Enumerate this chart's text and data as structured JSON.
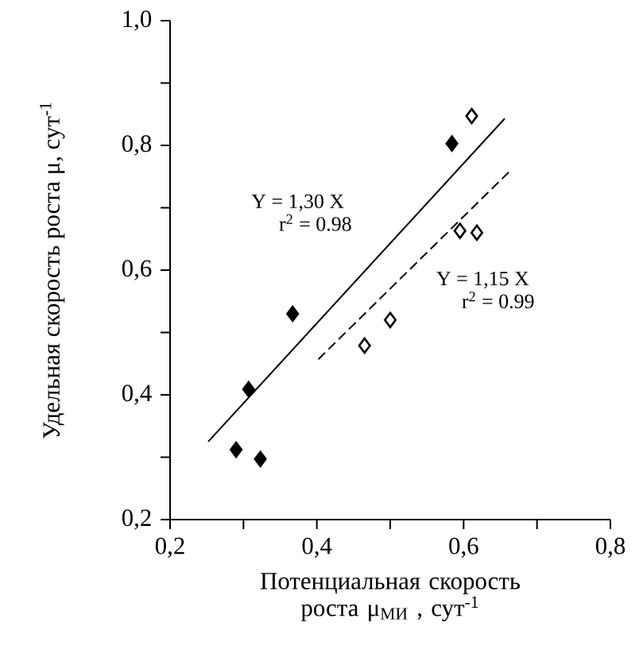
{
  "chart_data": {
    "type": "scatter",
    "xlabel": "Потенциальная скорость роста μ$_{МИ}$ , сут$^{-1}$",
    "ylabel": "Удельная скорость роста μ, сут$^{-1}$",
    "xlim": [
      0.2,
      0.8
    ],
    "ylim": [
      0.2,
      1.0
    ],
    "xticks": [
      {
        "value": 0.2,
        "label": "0,2"
      },
      {
        "value": 0.3,
        "label": null
      },
      {
        "value": 0.4,
        "label": "0,4"
      },
      {
        "value": 0.5,
        "label": null
      },
      {
        "value": 0.6,
        "label": "0,6"
      },
      {
        "value": 0.7,
        "label": null
      },
      {
        "value": 0.8,
        "label": "0,8"
      }
    ],
    "yticks": [
      {
        "value": 0.2,
        "label": "0,2"
      },
      {
        "value": 0.3,
        "label": null
      },
      {
        "value": 0.4,
        "label": "0,4"
      },
      {
        "value": 0.5,
        "label": null
      },
      {
        "value": 0.6,
        "label": "0,6"
      },
      {
        "value": 0.7,
        "label": null
      },
      {
        "value": 0.8,
        "label": "0,8"
      },
      {
        "value": 0.9,
        "label": null
      },
      {
        "value": 1.0,
        "label": "1,0"
      }
    ],
    "marker": "diamond",
    "grid": false,
    "series": [
      {
        "type": "scatter",
        "color": "#000000",
        "x": [
          0.29,
          0.323,
          0.307,
          0.367,
          0.584
        ],
        "values": [
          0.312,
          0.297,
          0.409,
          0.53,
          0.803
        ]
      },
      {
        "type": "scatter",
        "color": "#ffffff",
        "x": [
          0.611,
          0.595,
          0.618,
          0.465,
          0.5
        ],
        "values": [
          0.847,
          0.663,
          0.66,
          0.479,
          0.52
        ]
      },
      {
        "type": "line",
        "color": "#000000",
        "line_style": "solid",
        "marker": "none",
        "x": [
          0.252,
          0.656
        ],
        "values": [
          0.325,
          0.843
        ]
      },
      {
        "type": "line",
        "color": "#000000",
        "line_style": "dashed",
        "marker": "none",
        "x": [
          0.402,
          0.664
        ],
        "values": [
          0.457,
          0.76
        ]
      }
    ],
    "annotations": [
      "Y = 1,30 X",
      "r$^{2}$ = 0.98",
      "Y = 1,15 X",
      "r$^{2}$ = 0.99"
    ]
  }
}
